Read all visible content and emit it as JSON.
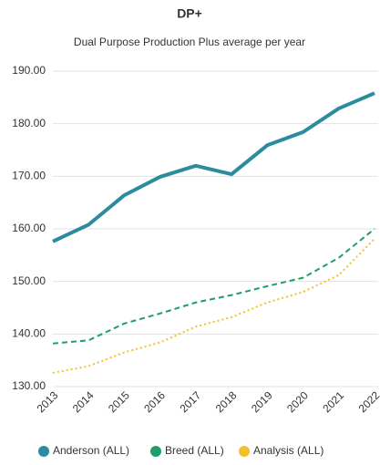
{
  "chart_data": {
    "type": "line",
    "title": "DP+",
    "subtitle": "Dual Purpose Production Plus average per year",
    "categories": [
      "2013",
      "2014",
      "2015",
      "2016",
      "2017",
      "2018",
      "2019",
      "2020",
      "2021",
      "2022"
    ],
    "series": [
      {
        "name": "Anderson (ALL)",
        "color": "#2b8c9e",
        "line_style": "solid",
        "values": [
          157.6,
          160.8,
          166.4,
          169.9,
          172.0,
          170.4,
          175.9,
          178.4,
          182.9,
          185.8
        ]
      },
      {
        "name": "Breed (ALL)",
        "color": "#1f9d6b",
        "line_style": "dashed",
        "values": [
          138.2,
          138.8,
          142.0,
          143.9,
          146.0,
          147.4,
          149.1,
          150.7,
          154.5,
          160.0
        ]
      },
      {
        "name": "Analysis (ALL)",
        "color": "#f4c02e",
        "line_style": "dotted",
        "values": [
          132.6,
          133.9,
          136.5,
          138.4,
          141.4,
          143.2,
          146.0,
          148.0,
          151.2,
          158.1
        ]
      }
    ],
    "ylim": [
      130,
      190
    ],
    "yticks": [
      {
        "value": 130,
        "label": "130.00"
      },
      {
        "value": 140,
        "label": "140.00"
      },
      {
        "value": 150,
        "label": "150.00"
      },
      {
        "value": 160,
        "label": "160.00"
      },
      {
        "value": 170,
        "label": "170.00"
      },
      {
        "value": 180,
        "label": "180.00"
      },
      {
        "value": 190,
        "label": "190.00"
      }
    ],
    "grid": true,
    "legend": "bottom"
  }
}
